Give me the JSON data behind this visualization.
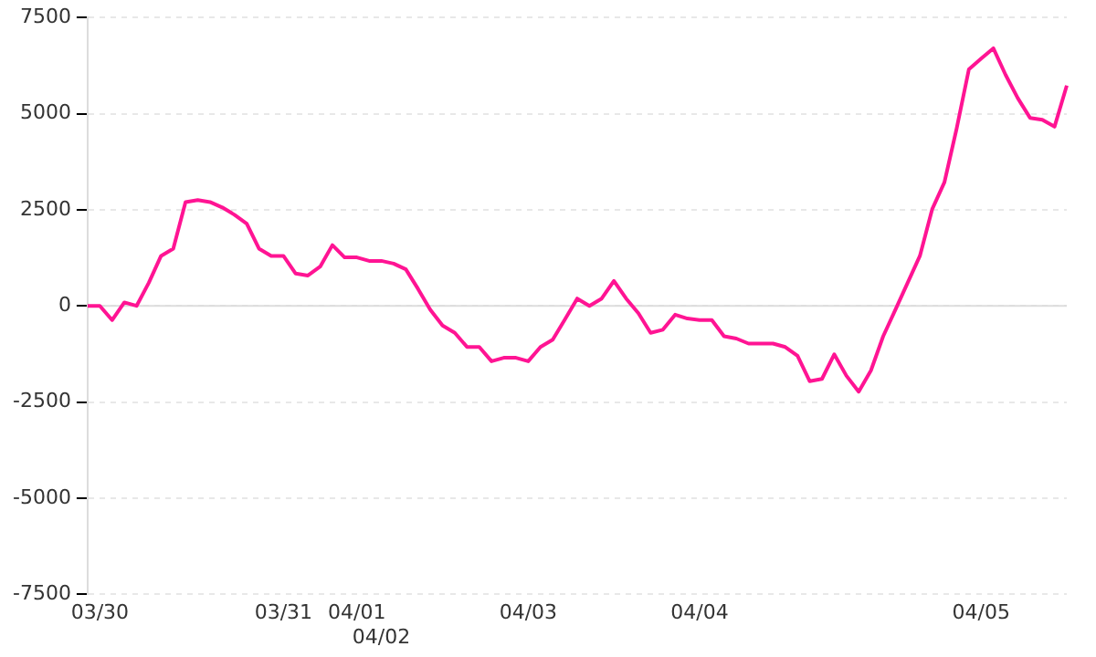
{
  "chart_data": {
    "type": "line",
    "categories": [
      null,
      "03/30",
      null,
      null,
      null,
      null,
      null,
      null,
      null,
      null,
      null,
      null,
      null,
      null,
      null,
      null,
      "03/31",
      null,
      null,
      null,
      null,
      null,
      "04/01",
      null,
      "04/02",
      null,
      null,
      null,
      null,
      null,
      null,
      null,
      null,
      null,
      null,
      null,
      "04/03",
      null,
      null,
      null,
      null,
      null,
      null,
      null,
      null,
      null,
      null,
      null,
      null,
      null,
      "04/04",
      null,
      null,
      null,
      null,
      null,
      null,
      null,
      null,
      null,
      null,
      null,
      null,
      null,
      null,
      null,
      null,
      null,
      null,
      null,
      null,
      null,
      null,
      "04/05",
      null,
      null,
      null,
      null,
      null,
      null,
      null
    ],
    "series": [
      {
        "color": "#ff1493",
        "values": [
          0,
          0,
          -370,
          90,
          0,
          600,
          1300,
          1490,
          2700,
          2750,
          2700,
          2560,
          2370,
          2140,
          1490,
          1300,
          1300,
          840,
          790,
          1020,
          1580,
          1260,
          1260,
          1170,
          1170,
          1100,
          950,
          440,
          -100,
          -510,
          -700,
          -1070,
          -1070,
          -1440,
          -1350,
          -1350,
          -1440,
          -1070,
          -880,
          -350,
          190,
          0,
          190,
          650,
          190,
          -190,
          -700,
          -620,
          -230,
          -330,
          -370,
          -370,
          -790,
          -850,
          -980,
          -980,
          -980,
          -1070,
          -1300,
          -1960,
          -1900,
          -1260,
          -1820,
          -2230,
          -1680,
          -790,
          -100,
          600,
          1300,
          2510,
          3210,
          4610,
          6150,
          6430,
          6700,
          6010,
          5400,
          4890,
          4840,
          4660,
          5730
        ]
      }
    ],
    "ylim": [
      -7500,
      7500
    ],
    "yticks": [
      -7500,
      -5000,
      -2500,
      0,
      2500,
      5000,
      7500
    ],
    "grid": "y",
    "legend": false,
    "marker": "none",
    "line_style": "solid",
    "ref_lines": [
      {
        "axis": "y",
        "value": 0,
        "color": "#dddddd"
      }
    ]
  }
}
